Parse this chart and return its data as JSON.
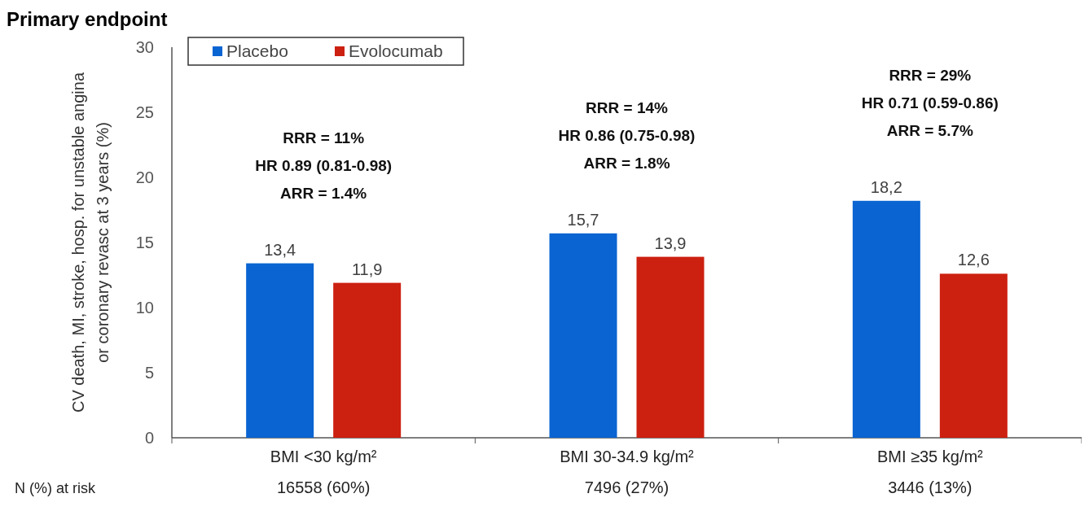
{
  "chart_data": {
    "type": "bar",
    "title": "Primary endpoint",
    "ylabel": "CV death, MI, stroke, hosp. for unstable angina\nor coronary revasc at 3 years (%)",
    "categories": [
      "BMI <30 kg/m²",
      "BMI 30-34.9 kg/m²",
      "BMI ≥35 kg/m²"
    ],
    "series": [
      {
        "name": "Placebo",
        "color": "#0a64d2",
        "values": [
          13.4,
          15.7,
          18.2
        ],
        "value_labels": [
          "13,4",
          "15,7",
          "18,2"
        ]
      },
      {
        "name": "Evolocumab",
        "color": "#cc2010",
        "values": [
          11.9,
          13.9,
          12.6
        ],
        "value_labels": [
          "11,9",
          "13,9",
          "12,6"
        ]
      }
    ],
    "ylim": [
      0,
      30
    ],
    "yticks": [
      0,
      5,
      10,
      15,
      20,
      25,
      30
    ],
    "grid": false,
    "legend": "top left",
    "annotations": [
      "RRR = 11%\nHR 0.89 (0.81-0.98)\nARR = 1.4%",
      "RRR = 14%\nHR 0.86 (0.75-0.98)\nARR = 1.8%",
      "RRR = 29%\nHR 0.71 (0.59-0.86)\nARR = 5.7%",
      "N (%) at risk",
      "16558 (60%)",
      "7496 (27%)",
      "3446 (13%)"
    ]
  }
}
